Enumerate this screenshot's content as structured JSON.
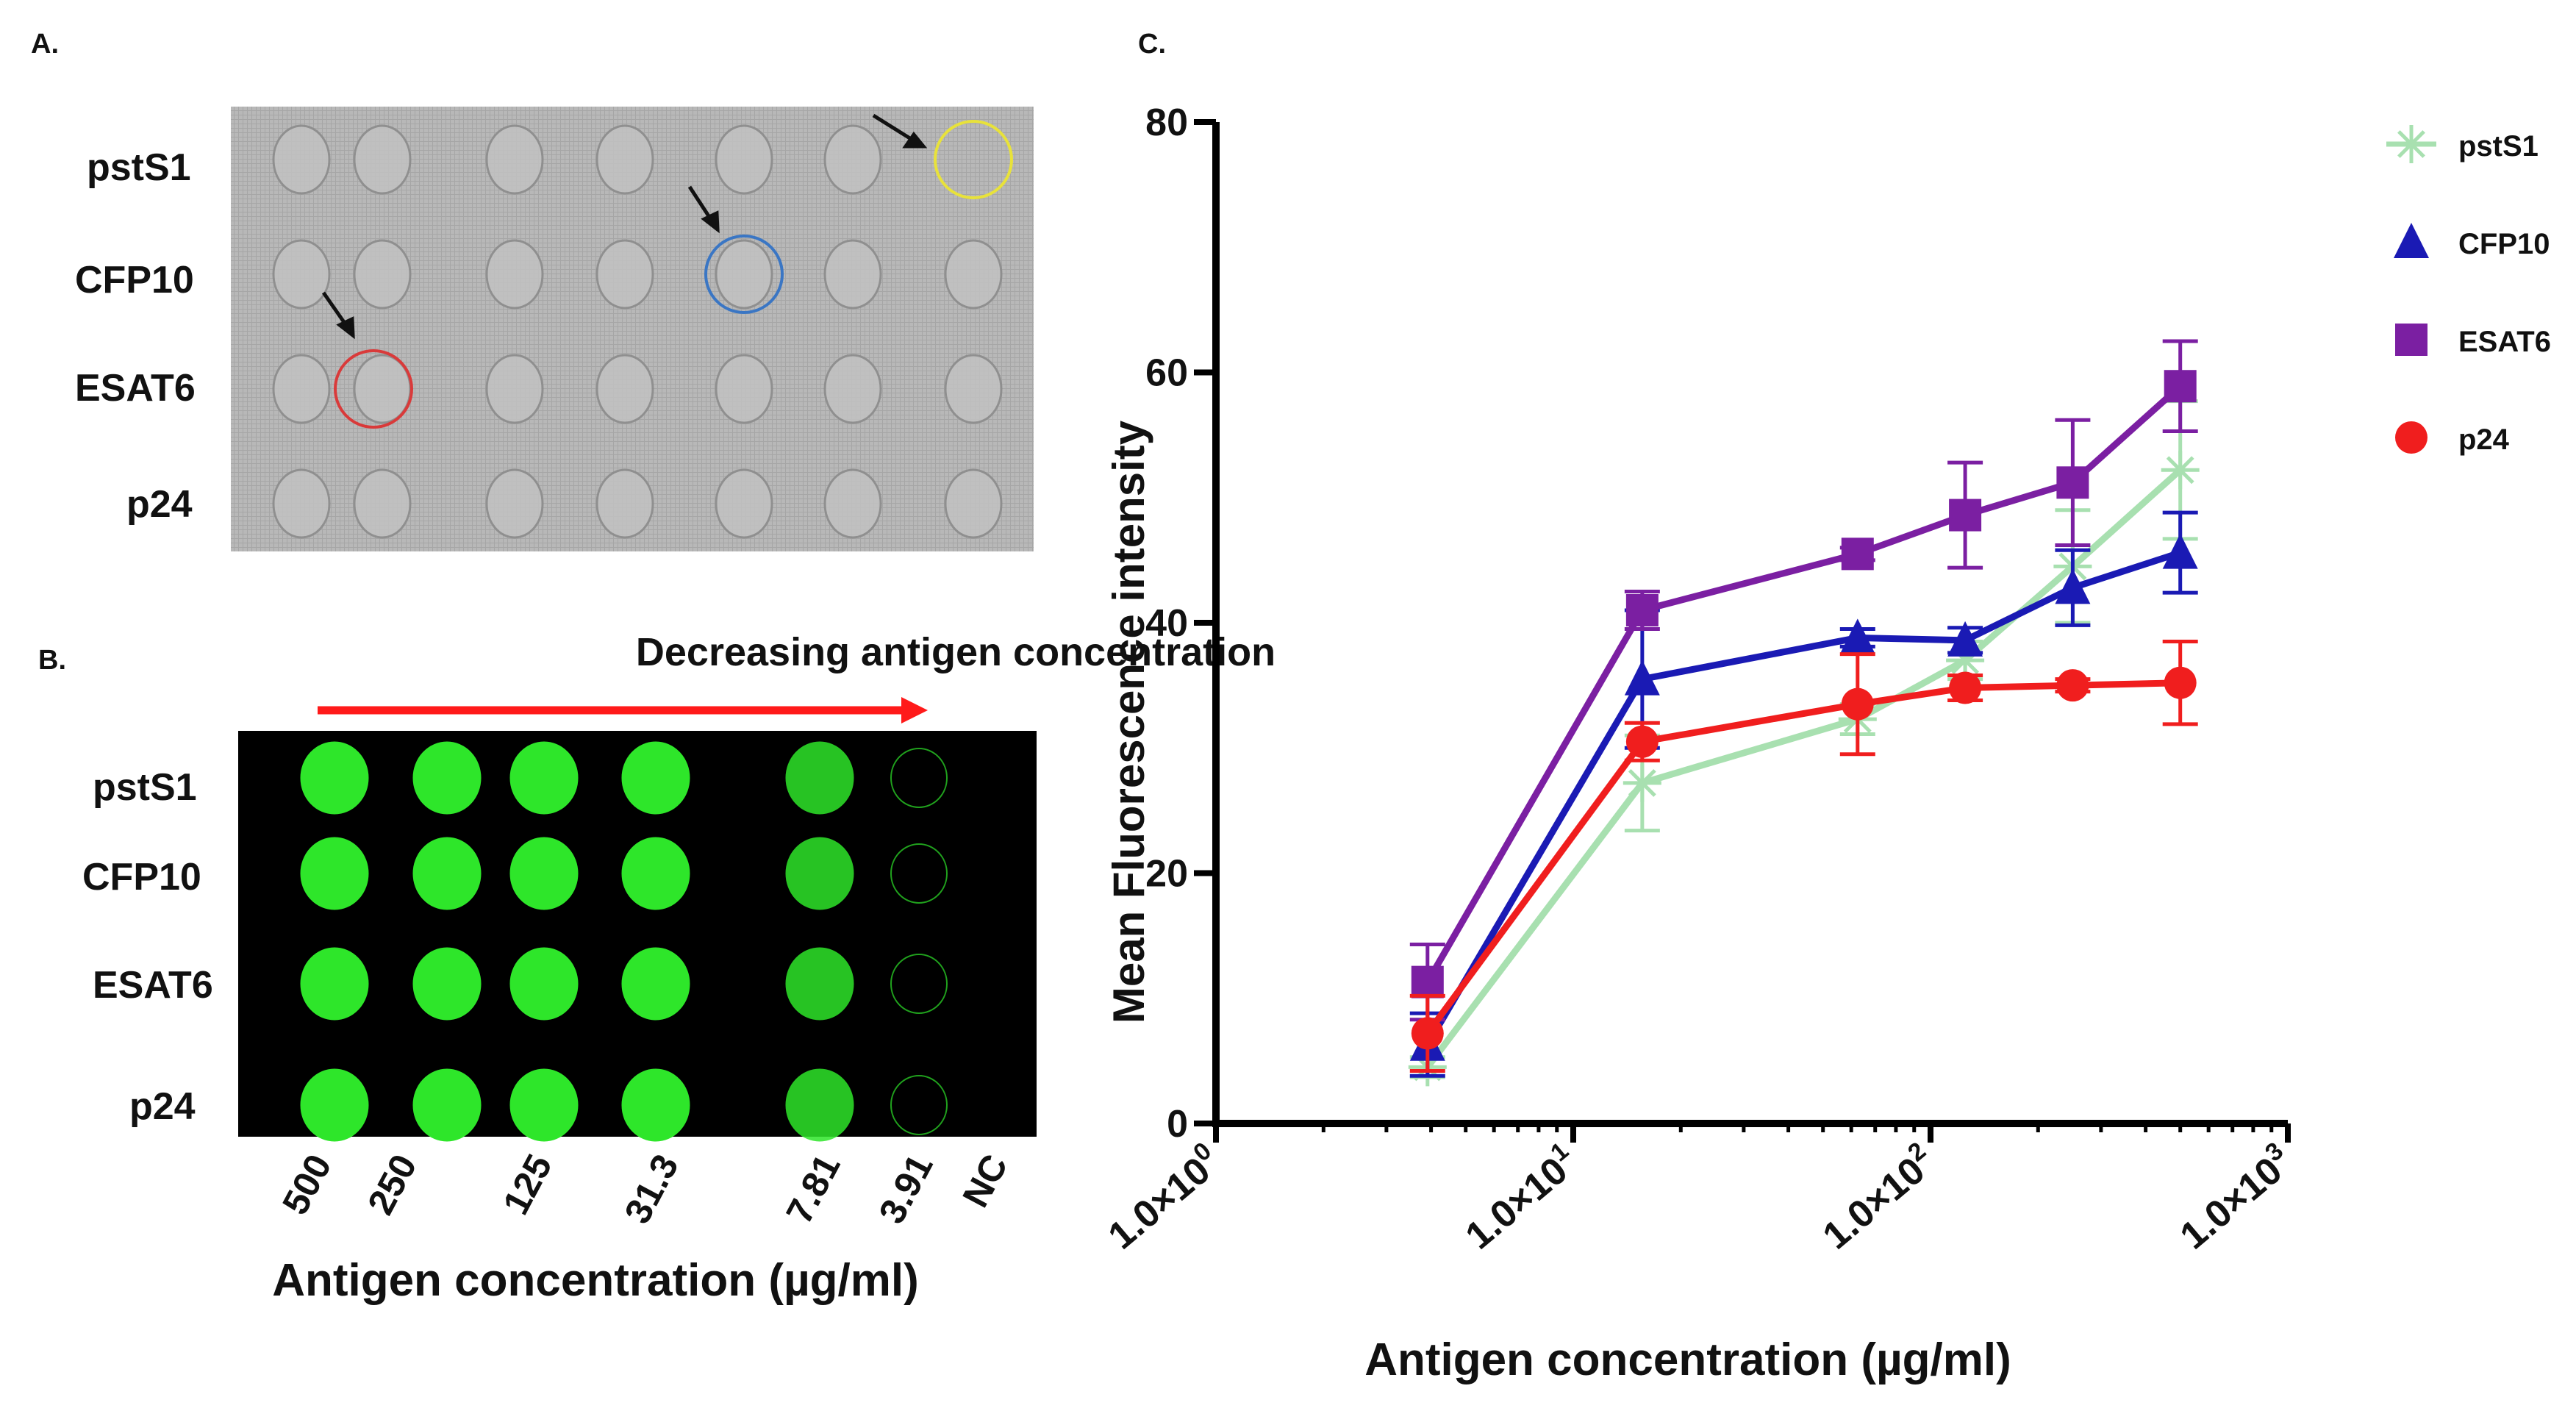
{
  "panel_labels": {
    "a": "A.",
    "b": "B.",
    "c": "C."
  },
  "panel_a": {
    "rows": [
      "pstS1",
      "CFP10",
      "ESAT6",
      "p24"
    ],
    "circle_colors": {
      "yellow": "#e8e23a",
      "blue": "#3a76c4",
      "red": "#d93a3a"
    }
  },
  "panel_b": {
    "arrow_label": "Decreasing antigen concentration",
    "rows": [
      "pstS1",
      "CFP10",
      "ESAT6",
      "p24"
    ],
    "columns": [
      "500",
      "250",
      "125",
      "31.3",
      "7.81",
      "3.91",
      "NC"
    ],
    "xlabel": "Antigen concentration (µg/ml)",
    "spot_color": "#2ee62a",
    "arrow_color": "#ff1a1a"
  },
  "chart_data": {
    "type": "line",
    "xscale": "log",
    "xlabel": "Antigen concentration (µg/ml)",
    "ylabel": "Mean Fluorescence intensity",
    "xlim": [
      1,
      1000
    ],
    "ylim": [
      0,
      80
    ],
    "yticks": [
      "0",
      "20",
      "40",
      "60",
      "80"
    ],
    "xticks": [
      {
        "base": "1.0×10",
        "exp": "0",
        "value": 1
      },
      {
        "base": "1.0×10",
        "exp": "1",
        "value": 10
      },
      {
        "base": "1.0×10",
        "exp": "2",
        "value": 100
      },
      {
        "base": "1.0×10",
        "exp": "3",
        "value": 1000
      }
    ],
    "x": [
      3.91,
      15.6,
      62.5,
      125,
      250,
      500
    ],
    "series": [
      {
        "name": "pstS1",
        "color": "#a8e0b0",
        "marker": "star",
        "values": [
          4.5,
          27.2,
          32.3,
          37.0,
          44.5,
          52.2
        ],
        "errors": [
          0.8,
          3.8,
          1.2,
          1.5,
          4.5,
          5.5
        ]
      },
      {
        "name": "CFP10",
        "color": "#1a1ab4",
        "marker": "triangle",
        "values": [
          6.3,
          35.5,
          38.8,
          38.6,
          42.8,
          45.6
        ],
        "errors": [
          2.5,
          5.5,
          0.7,
          1.0,
          3.0,
          3.2
        ]
      },
      {
        "name": "ESAT6",
        "color": "#7b1fa2",
        "marker": "square",
        "values": [
          11.3,
          41.0,
          45.5,
          48.6,
          51.2,
          58.9
        ],
        "errors": [
          3.0,
          1.5,
          0.5,
          4.2,
          5.0,
          3.6
        ]
      },
      {
        "name": "p24",
        "color": "#f01e1e",
        "marker": "circle",
        "values": [
          7.2,
          30.5,
          33.5,
          34.8,
          35.0,
          35.2
        ],
        "errors": [
          3.0,
          1.5,
          4.0,
          1.0,
          0.5,
          3.3
        ]
      }
    ]
  }
}
